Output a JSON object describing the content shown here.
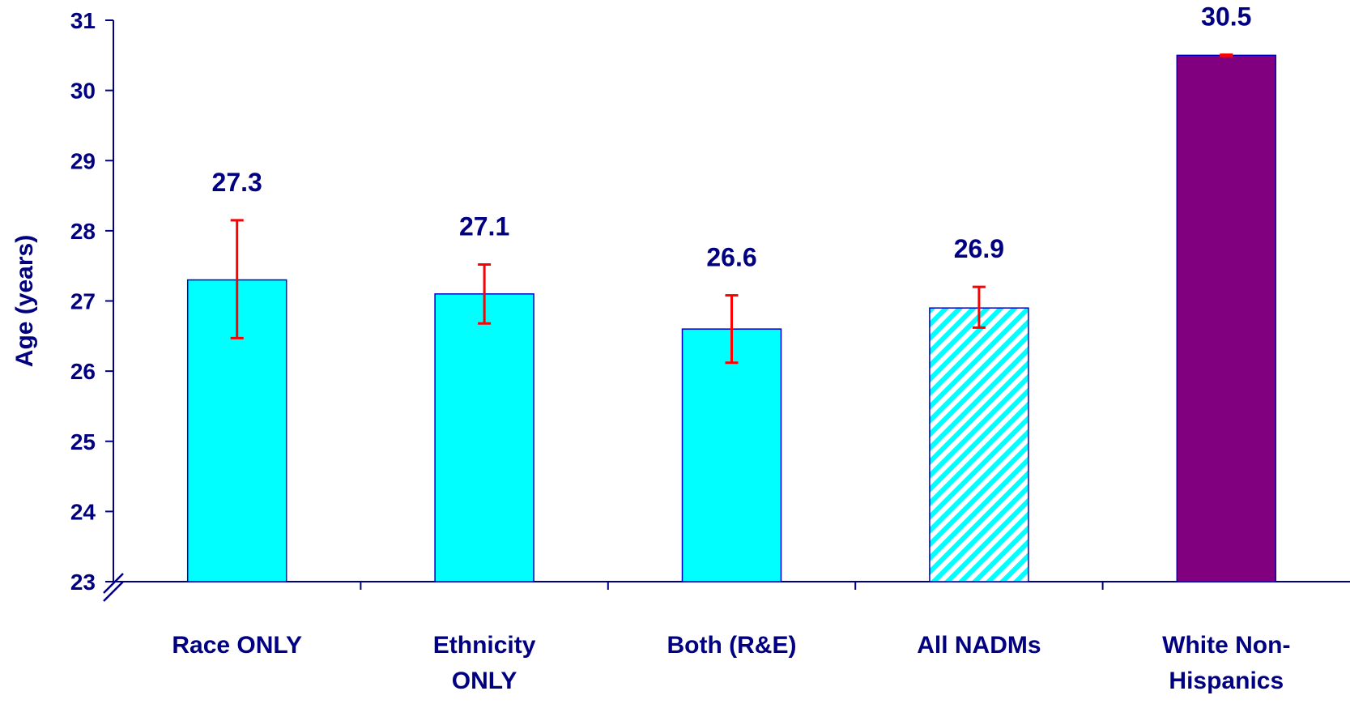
{
  "chart_data": {
    "type": "bar",
    "title": "",
    "xlabel": "",
    "ylabel": "Age (years)",
    "ylim": [
      23,
      31
    ],
    "yticks": [
      23,
      24,
      25,
      26,
      27,
      28,
      29,
      30,
      31
    ],
    "axis_break": true,
    "grid": false,
    "categories": [
      [
        "Race ONLY"
      ],
      [
        "Ethnicity",
        "ONLY"
      ],
      [
        "Both (R&E)"
      ],
      [
        "All NADMs"
      ],
      [
        "White Non-",
        "Hispanics"
      ]
    ],
    "values": [
      27.3,
      27.1,
      26.6,
      26.9,
      30.5
    ],
    "data_labels": [
      "27.3",
      "27.1",
      "26.6",
      "26.9",
      "30.5"
    ],
    "error_low": [
      26.47,
      26.68,
      26.12,
      26.62,
      30.49
    ],
    "error_high": [
      28.15,
      27.52,
      27.08,
      27.2,
      30.51
    ],
    "bar_styles": [
      "solid",
      "solid",
      "solid",
      "hatched",
      "solid"
    ],
    "colors": {
      "bar_fill": [
        "#00FFFF",
        "#00FFFF",
        "#00FFFF",
        "#00FFFF",
        "#800080"
      ],
      "bar_stroke": "#0000CC",
      "error_bar": "#FF0000",
      "text": "#000080",
      "axis": "#000080"
    }
  }
}
